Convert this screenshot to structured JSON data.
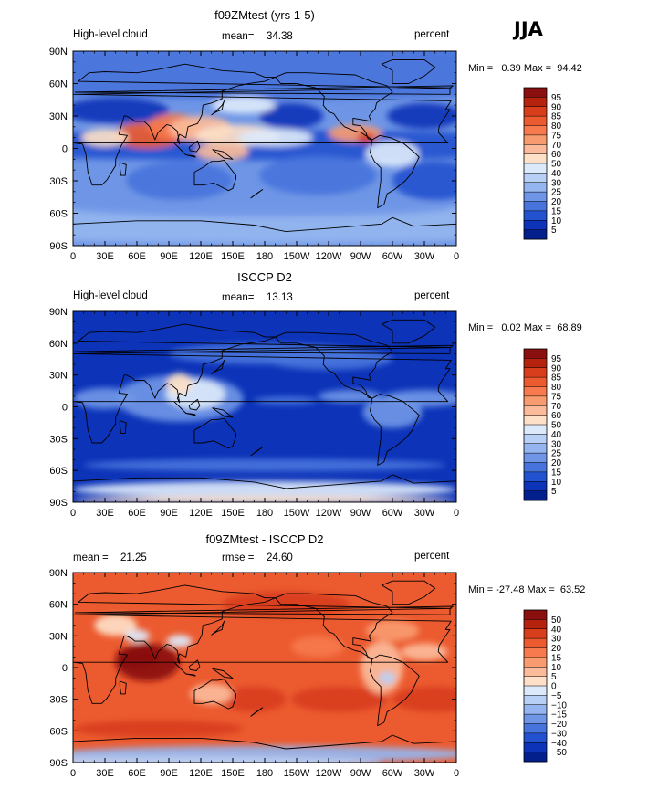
{
  "season": "JJA",
  "chart_data": [
    {
      "type": "heatmap",
      "title": "f09ZMtest (yrs 1-5)",
      "variable": "High-level cloud",
      "units": "percent",
      "stats": {
        "left_label": "mean=",
        "left_value": "34.38"
      },
      "range": {
        "min": "0.39",
        "max": "94.42"
      },
      "range_text": "Min =   0.39 Max =  94.42",
      "xticks": [
        "0",
        "30E",
        "60E",
        "90E",
        "120E",
        "150E",
        "180",
        "150W",
        "120W",
        "90W",
        "60W",
        "30W",
        "0"
      ],
      "yticks": [
        "90N",
        "60N",
        "30N",
        "0",
        "30S",
        "60S",
        "90S"
      ],
      "colorbar": {
        "labels": [
          "95",
          "90",
          "85",
          "80",
          "75",
          "70",
          "60",
          "50",
          "40",
          "30",
          "25",
          "20",
          "15",
          "10",
          "5"
        ],
        "colors": [
          "#8a0f0f",
          "#b5230f",
          "#d83e1c",
          "#ec5b30",
          "#f67a4d",
          "#f99b70",
          "#fbbb9a",
          "#fde0c7",
          "#dce9fa",
          "#b8d0f5",
          "#94b5ef",
          "#6f96e6",
          "#4774dc",
          "#2252cf",
          "#0c33b8",
          "#021f8c"
        ]
      }
    },
    {
      "type": "heatmap",
      "title": "ISCCP D2",
      "variable": "High-level cloud",
      "units": "percent",
      "stats": {
        "left_label": "mean=",
        "left_value": "13.13"
      },
      "range": {
        "min": "0.02",
        "max": "68.89"
      },
      "range_text": "Min =   0.02 Max =  68.89",
      "xticks": [
        "0",
        "30E",
        "60E",
        "90E",
        "120E",
        "150E",
        "180",
        "150W",
        "120W",
        "90W",
        "60W",
        "30W",
        "0"
      ],
      "yticks": [
        "90N",
        "60N",
        "30N",
        "0",
        "30S",
        "60S",
        "90S"
      ],
      "colorbar": {
        "labels": [
          "95",
          "90",
          "85",
          "80",
          "75",
          "70",
          "60",
          "50",
          "40",
          "30",
          "25",
          "20",
          "15",
          "10",
          "5"
        ],
        "colors": [
          "#8a0f0f",
          "#b5230f",
          "#d83e1c",
          "#ec5b30",
          "#f67a4d",
          "#f99b70",
          "#fbbb9a",
          "#fde0c7",
          "#dce9fa",
          "#b8d0f5",
          "#94b5ef",
          "#6f96e6",
          "#4774dc",
          "#2252cf",
          "#0c33b8",
          "#021f8c"
        ]
      }
    },
    {
      "type": "heatmap",
      "title": "f09ZMtest - ISCCP D2",
      "units": "percent",
      "stats": {
        "left_label": "mean =",
        "left_value": "21.25",
        "right_label": "rmse =",
        "right_value": "24.60"
      },
      "range": {
        "min": "-27.48",
        "max": "63.52"
      },
      "range_text": "Min = -27.48 Max =  63.52",
      "xticks": [
        "0",
        "30E",
        "60E",
        "90E",
        "120E",
        "150E",
        "180",
        "150W",
        "120W",
        "90W",
        "60W",
        "30W",
        "0"
      ],
      "yticks": [
        "90N",
        "60N",
        "30N",
        "0",
        "30S",
        "60S",
        "90S"
      ],
      "colorbar": {
        "labels": [
          "50",
          "40",
          "30",
          "20",
          "15",
          "10",
          "5",
          "0",
          "−5",
          "−10",
          "−15",
          "−20",
          "−30",
          "−40",
          "−50"
        ],
        "colors": [
          "#8a0f0f",
          "#b5230f",
          "#d83e1c",
          "#ec5b30",
          "#f67a4d",
          "#f99b70",
          "#fbbb9a",
          "#fde0c7",
          "#dce9fa",
          "#b8d0f5",
          "#94b5ef",
          "#6f96e6",
          "#4774dc",
          "#2252cf",
          "#0c33b8",
          "#021f8c"
        ]
      }
    }
  ]
}
